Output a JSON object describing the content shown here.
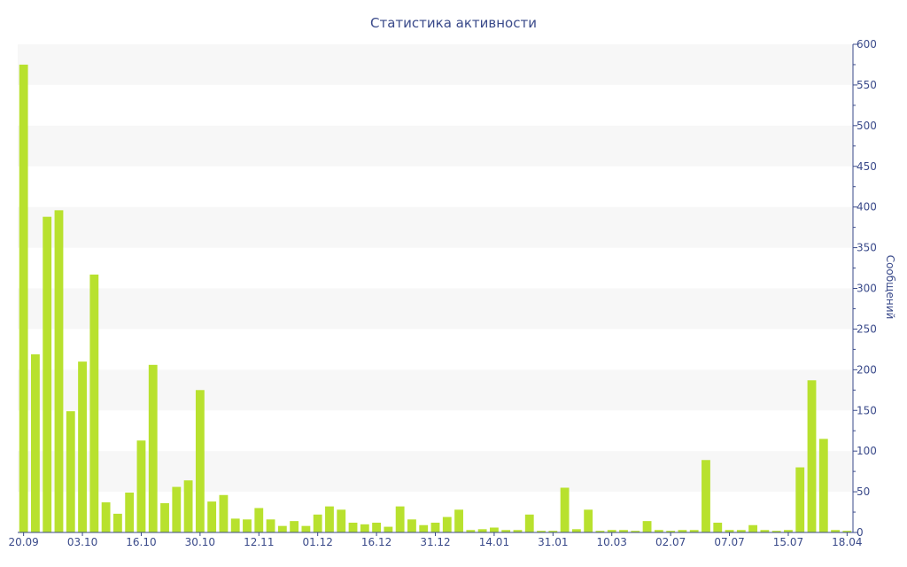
{
  "chart_data": {
    "type": "bar",
    "title": "Статистика активности",
    "xlabel": "",
    "ylabel": "Сообщений",
    "ylim": [
      0,
      600
    ],
    "y_axis_position": "right",
    "grid": "horizontal bands",
    "legend": "none",
    "y_ticks": [
      0,
      50,
      100,
      150,
      200,
      250,
      300,
      350,
      400,
      450,
      500,
      550,
      600
    ],
    "x_tick_labels": [
      {
        "index": 0,
        "label": "20.09"
      },
      {
        "index": 5,
        "label": "03.10"
      },
      {
        "index": 10,
        "label": "16.10"
      },
      {
        "index": 15,
        "label": "30.10"
      },
      {
        "index": 20,
        "label": "12.11"
      },
      {
        "index": 25,
        "label": "01.12"
      },
      {
        "index": 30,
        "label": "16.12"
      },
      {
        "index": 35,
        "label": "31.12"
      },
      {
        "index": 40,
        "label": "14.01"
      },
      {
        "index": 45,
        "label": "31.01"
      },
      {
        "index": 50,
        "label": "10.03"
      },
      {
        "index": 55,
        "label": "02.07"
      },
      {
        "index": 60,
        "label": "07.07"
      },
      {
        "index": 65,
        "label": "15.07"
      },
      {
        "index": 70,
        "label": "18.04"
      }
    ],
    "values": [
      575,
      219,
      388,
      396,
      149,
      210,
      317,
      37,
      23,
      49,
      113,
      206,
      36,
      56,
      64,
      175,
      38,
      46,
      17,
      16,
      30,
      16,
      8,
      14,
      8,
      22,
      32,
      28,
      12,
      10,
      12,
      7,
      32,
      16,
      9,
      12,
      19,
      28,
      3,
      4,
      6,
      3,
      3,
      22,
      2,
      2,
      55,
      4,
      28,
      2,
      3,
      3,
      2,
      14,
      3,
      2,
      3,
      3,
      89,
      12,
      3,
      3,
      9,
      3,
      2,
      3,
      80,
      187,
      115,
      3,
      2
    ],
    "colors": {
      "bar": "#b8e12e",
      "band": "#f7f7f7",
      "axis": "#3a4a8a",
      "text": "#3a4a8a"
    }
  }
}
